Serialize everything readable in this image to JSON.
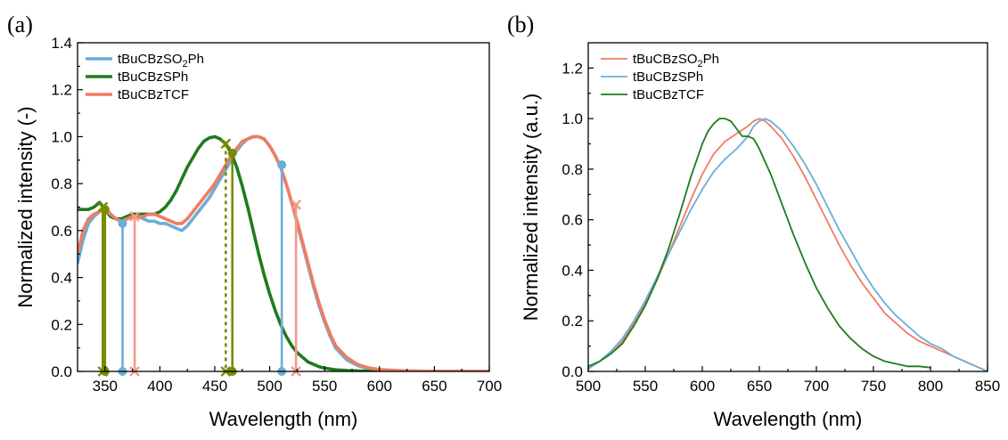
{
  "chart_data": [
    {
      "panel_label": "(a)",
      "type": "line",
      "xlabel": "Wavelength (nm)",
      "ylabel": "Normalized intensity (-)",
      "xlim": [
        325,
        700
      ],
      "ylim": [
        0,
        1.4
      ],
      "xticks": [
        350,
        400,
        450,
        500,
        550,
        600,
        650,
        700
      ],
      "yticks": [
        0.0,
        0.2,
        0.4,
        0.6,
        0.8,
        1.0,
        1.2,
        1.4
      ],
      "legend_position": "top-left",
      "series": [
        {
          "name": "tBuCBzSO₂Ph",
          "legend_name": {
            "base": "tBuCBzSO",
            "sub": "2",
            "tail": "Ph"
          },
          "color": "#6baed6",
          "x": [
            325,
            330,
            335,
            340,
            345,
            350,
            355,
            360,
            365,
            370,
            375,
            380,
            385,
            390,
            395,
            400,
            405,
            410,
            415,
            420,
            425,
            430,
            435,
            440,
            445,
            450,
            455,
            460,
            465,
            470,
            475,
            480,
            485,
            490,
            495,
            500,
            505,
            510,
            515,
            520,
            525,
            530,
            535,
            540,
            545,
            550,
            555,
            560,
            570,
            580,
            590,
            600,
            620,
            650,
            700
          ],
          "y": [
            0.46,
            0.56,
            0.63,
            0.66,
            0.68,
            0.7,
            0.67,
            0.65,
            0.64,
            0.65,
            0.66,
            0.66,
            0.65,
            0.64,
            0.64,
            0.63,
            0.63,
            0.62,
            0.61,
            0.6,
            0.62,
            0.65,
            0.68,
            0.71,
            0.74,
            0.78,
            0.82,
            0.86,
            0.9,
            0.94,
            0.97,
            0.99,
            1.0,
            1.0,
            0.99,
            0.96,
            0.92,
            0.87,
            0.8,
            0.72,
            0.63,
            0.54,
            0.45,
            0.36,
            0.28,
            0.21,
            0.15,
            0.1,
            0.05,
            0.025,
            0.012,
            0.006,
            0.002,
            0.0,
            0.0
          ]
        },
        {
          "name": "tBuCBzSPh",
          "legend_name": {
            "base": "tBuCBzSPh",
            "sub": "",
            "tail": ""
          },
          "color": "#1e7b1e",
          "x": [
            325,
            330,
            335,
            340,
            345,
            350,
            355,
            360,
            365,
            370,
            375,
            380,
            385,
            390,
            395,
            400,
            405,
            410,
            415,
            420,
            425,
            430,
            435,
            440,
            445,
            450,
            455,
            460,
            465,
            470,
            475,
            480,
            485,
            490,
            495,
            500,
            505,
            510,
            515,
            520,
            525,
            530,
            535,
            540,
            545,
            550,
            560,
            570,
            580,
            600,
            650,
            700
          ],
          "y": [
            0.69,
            0.69,
            0.69,
            0.7,
            0.72,
            0.69,
            0.66,
            0.65,
            0.65,
            0.66,
            0.67,
            0.67,
            0.67,
            0.67,
            0.67,
            0.68,
            0.7,
            0.73,
            0.77,
            0.82,
            0.87,
            0.91,
            0.95,
            0.98,
            0.995,
            1.0,
            0.99,
            0.97,
            0.93,
            0.87,
            0.79,
            0.7,
            0.6,
            0.5,
            0.41,
            0.33,
            0.26,
            0.2,
            0.15,
            0.11,
            0.08,
            0.06,
            0.04,
            0.03,
            0.02,
            0.014,
            0.007,
            0.004,
            0.002,
            0.0,
            0.0,
            0.0
          ]
        },
        {
          "name": "tBuCBzTCF",
          "legend_name": {
            "base": "tBuCBzTCF",
            "sub": "",
            "tail": ""
          },
          "color": "#f07c63",
          "x": [
            325,
            330,
            335,
            340,
            345,
            350,
            355,
            360,
            365,
            370,
            375,
            380,
            385,
            390,
            395,
            400,
            405,
            410,
            415,
            420,
            425,
            430,
            435,
            440,
            445,
            450,
            455,
            460,
            465,
            470,
            475,
            480,
            485,
            490,
            495,
            500,
            505,
            510,
            515,
            520,
            525,
            530,
            535,
            540,
            545,
            550,
            555,
            560,
            570,
            580,
            590,
            600,
            620,
            650,
            700
          ],
          "y": [
            0.5,
            0.6,
            0.65,
            0.67,
            0.68,
            0.69,
            0.67,
            0.65,
            0.64,
            0.65,
            0.66,
            0.66,
            0.66,
            0.67,
            0.67,
            0.66,
            0.65,
            0.64,
            0.63,
            0.63,
            0.65,
            0.68,
            0.71,
            0.74,
            0.77,
            0.8,
            0.84,
            0.88,
            0.92,
            0.95,
            0.98,
            0.99,
            1.0,
            1.0,
            0.99,
            0.96,
            0.92,
            0.87,
            0.8,
            0.72,
            0.64,
            0.55,
            0.46,
            0.37,
            0.29,
            0.22,
            0.16,
            0.11,
            0.06,
            0.03,
            0.015,
            0.008,
            0.003,
            0.0,
            0.0
          ]
        }
      ],
      "droplines": [
        {
          "x": 348,
          "y": 0.7,
          "color": "#7a8a00",
          "marker": "x",
          "dashed": false
        },
        {
          "x": 350,
          "y": 0.69,
          "color": "#7a8a00",
          "marker": "circle",
          "dashed": false
        },
        {
          "x": 366,
          "y": 0.63,
          "color": "#6baed6",
          "marker": "circle",
          "dashed": false
        },
        {
          "x": 377,
          "y": 0.66,
          "color": "#f4998a",
          "marker": "x",
          "dashed": false
        },
        {
          "x": 460,
          "y": 0.97,
          "color": "#7a8a00",
          "marker": "x",
          "dashed": true
        },
        {
          "x": 466,
          "y": 0.93,
          "color": "#7a8a00",
          "marker": "circle",
          "dashed": false
        },
        {
          "x": 511,
          "y": 0.88,
          "color": "#6baed6",
          "marker": "circle",
          "dashed": false
        },
        {
          "x": 524,
          "y": 0.71,
          "color": "#f4998a",
          "marker": "x",
          "dashed": false
        }
      ]
    },
    {
      "panel_label": "(b)",
      "type": "line",
      "xlabel": "Wavelength (nm)",
      "ylabel": "Normalized intensity (a.u.)",
      "xlim": [
        500,
        850
      ],
      "ylim": [
        0,
        1.3
      ],
      "xticks": [
        500,
        550,
        600,
        650,
        700,
        750,
        800,
        850
      ],
      "yticks": [
        0.0,
        0.2,
        0.4,
        0.6,
        0.8,
        1.0,
        1.2
      ],
      "legend_position": "top-left",
      "series": [
        {
          "name": "tBuCBzSO₂Ph",
          "legend_name": {
            "base": "tBuCBzSO",
            "sub": "2",
            "tail": "Ph"
          },
          "color": "#f07c63",
          "x": [
            500,
            510,
            520,
            530,
            540,
            550,
            560,
            570,
            580,
            590,
            600,
            610,
            620,
            630,
            640,
            645,
            650,
            655,
            660,
            670,
            680,
            690,
            700,
            710,
            720,
            730,
            740,
            750,
            760,
            770,
            780,
            790,
            800,
            810,
            820,
            830,
            840,
            850
          ],
          "y": [
            0.01,
            0.04,
            0.07,
            0.12,
            0.19,
            0.27,
            0.36,
            0.46,
            0.57,
            0.68,
            0.78,
            0.86,
            0.91,
            0.94,
            0.97,
            0.99,
            1.0,
            0.99,
            0.97,
            0.92,
            0.85,
            0.77,
            0.68,
            0.59,
            0.5,
            0.42,
            0.35,
            0.29,
            0.23,
            0.19,
            0.15,
            0.12,
            0.1,
            0.08,
            0.06,
            0.04,
            0.02,
            0.0
          ]
        },
        {
          "name": "tBuCBzSPh",
          "legend_name": {
            "base": "tBuCBzSPh",
            "sub": "",
            "tail": ""
          },
          "color": "#6baed6",
          "x": [
            500,
            510,
            520,
            530,
            540,
            550,
            560,
            570,
            580,
            590,
            600,
            610,
            620,
            630,
            640,
            645,
            650,
            655,
            660,
            670,
            680,
            690,
            700,
            710,
            720,
            730,
            740,
            750,
            760,
            770,
            780,
            790,
            800,
            810,
            820,
            830,
            840,
            850
          ],
          "y": [
            0.01,
            0.04,
            0.08,
            0.13,
            0.2,
            0.28,
            0.37,
            0.46,
            0.55,
            0.64,
            0.72,
            0.79,
            0.84,
            0.88,
            0.93,
            0.97,
            0.99,
            1.0,
            0.99,
            0.95,
            0.89,
            0.82,
            0.74,
            0.65,
            0.56,
            0.48,
            0.4,
            0.33,
            0.27,
            0.22,
            0.18,
            0.14,
            0.11,
            0.09,
            0.06,
            0.04,
            0.02,
            0.0
          ]
        },
        {
          "name": "tBuCBzTCF",
          "legend_name": {
            "base": "tBuCBzTCF",
            "sub": "",
            "tail": ""
          },
          "color": "#1e7b1e",
          "x": [
            500,
            510,
            520,
            530,
            540,
            550,
            560,
            570,
            580,
            590,
            600,
            605,
            610,
            615,
            620,
            625,
            630,
            635,
            640,
            645,
            650,
            660,
            670,
            680,
            690,
            700,
            710,
            720,
            730,
            740,
            750,
            760,
            770,
            780,
            790,
            800
          ],
          "y": [
            0.02,
            0.04,
            0.07,
            0.11,
            0.18,
            0.26,
            0.36,
            0.48,
            0.62,
            0.77,
            0.9,
            0.95,
            0.98,
            1.0,
            1.0,
            0.99,
            0.96,
            0.93,
            0.93,
            0.92,
            0.88,
            0.78,
            0.66,
            0.54,
            0.43,
            0.33,
            0.25,
            0.18,
            0.13,
            0.09,
            0.06,
            0.04,
            0.03,
            0.02,
            0.02,
            0.015
          ]
        }
      ]
    }
  ]
}
